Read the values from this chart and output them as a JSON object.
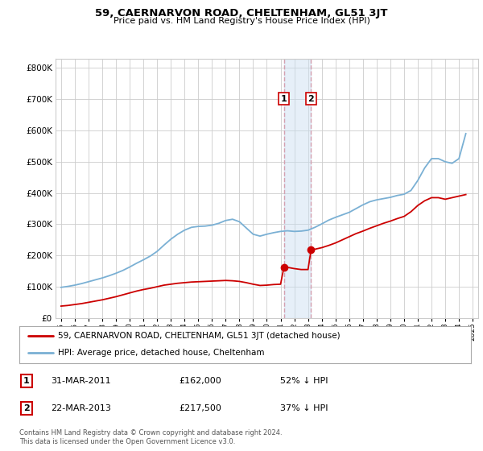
{
  "title": "59, CAERNARVON ROAD, CHELTENHAM, GL51 3JT",
  "subtitle": "Price paid vs. HM Land Registry's House Price Index (HPI)",
  "legend_line1": "59, CAERNARVON ROAD, CHELTENHAM, GL51 3JT (detached house)",
  "legend_line2": "HPI: Average price, detached house, Cheltenham",
  "footnote": "Contains HM Land Registry data © Crown copyright and database right 2024.\nThis data is licensed under the Open Government Licence v3.0.",
  "sale1_label": "1",
  "sale1_date": "31-MAR-2011",
  "sale1_price": "£162,000",
  "sale1_pct": "52% ↓ HPI",
  "sale1_x": 2011.24,
  "sale1_y": 162000,
  "sale2_label": "2",
  "sale2_date": "22-MAR-2013",
  "sale2_price": "£217,500",
  "sale2_pct": "37% ↓ HPI",
  "sale2_x": 2013.22,
  "sale2_y": 217500,
  "red_color": "#cc0000",
  "blue_color": "#7ab0d4",
  "dot_color": "#cc0000",
  "vline_color": "#d4a0b0",
  "background_color": "#ffffff",
  "grid_color": "#cccccc",
  "ylim": [
    0,
    830000
  ],
  "yticks": [
    0,
    100000,
    200000,
    300000,
    400000,
    500000,
    600000,
    700000,
    800000
  ],
  "xlim_min": 1994.6,
  "xlim_max": 2025.4,
  "hpi_x": [
    1995.0,
    1995.5,
    1996.0,
    1996.5,
    1997.0,
    1997.5,
    1998.0,
    1998.5,
    1999.0,
    1999.5,
    2000.0,
    2000.5,
    2001.0,
    2001.5,
    2002.0,
    2002.5,
    2003.0,
    2003.5,
    2004.0,
    2004.5,
    2005.0,
    2005.5,
    2006.0,
    2006.5,
    2007.0,
    2007.5,
    2008.0,
    2008.5,
    2009.0,
    2009.5,
    2010.0,
    2010.5,
    2011.0,
    2011.5,
    2012.0,
    2012.5,
    2013.0,
    2013.5,
    2014.0,
    2014.5,
    2015.0,
    2015.5,
    2016.0,
    2016.5,
    2017.0,
    2017.5,
    2018.0,
    2018.5,
    2019.0,
    2019.5,
    2020.0,
    2020.5,
    2021.0,
    2021.5,
    2022.0,
    2022.5,
    2023.0,
    2023.5,
    2024.0,
    2024.5
  ],
  "hpi_y": [
    98000,
    101000,
    105000,
    110000,
    116000,
    122000,
    128000,
    135000,
    143000,
    152000,
    163000,
    175000,
    186000,
    198000,
    213000,
    233000,
    252000,
    268000,
    281000,
    290000,
    293000,
    294000,
    297000,
    303000,
    312000,
    316000,
    308000,
    288000,
    268000,
    262000,
    268000,
    273000,
    277000,
    279000,
    277000,
    278000,
    281000,
    290000,
    301000,
    313000,
    322000,
    330000,
    338000,
    350000,
    362000,
    372000,
    378000,
    382000,
    386000,
    392000,
    396000,
    408000,
    440000,
    480000,
    510000,
    510000,
    500000,
    495000,
    510000,
    590000
  ],
  "red_x": [
    1995.0,
    1995.5,
    1996.0,
    1996.5,
    1997.0,
    1997.5,
    1998.0,
    1998.5,
    1999.0,
    1999.5,
    2000.0,
    2000.5,
    2001.0,
    2001.5,
    2002.0,
    2002.5,
    2003.0,
    2003.5,
    2004.0,
    2004.5,
    2005.0,
    2005.5,
    2006.0,
    2006.5,
    2007.0,
    2007.5,
    2008.0,
    2008.5,
    2009.0,
    2009.5,
    2010.0,
    2010.5,
    2011.0,
    2011.24,
    2011.5,
    2012.0,
    2012.5,
    2013.0,
    2013.22,
    2013.5,
    2014.0,
    2014.5,
    2015.0,
    2015.5,
    2016.0,
    2016.5,
    2017.0,
    2017.5,
    2018.0,
    2018.5,
    2019.0,
    2019.5,
    2020.0,
    2020.5,
    2021.0,
    2021.5,
    2022.0,
    2022.5,
    2023.0,
    2023.5,
    2024.0,
    2024.5
  ],
  "red_y": [
    38000,
    40000,
    43000,
    46000,
    50000,
    54000,
    58000,
    63000,
    68000,
    74000,
    80000,
    86000,
    91000,
    95000,
    100000,
    105000,
    108000,
    111000,
    113000,
    115000,
    116000,
    117000,
    118000,
    119000,
    120000,
    119000,
    117000,
    113000,
    108000,
    104000,
    105000,
    107000,
    108000,
    162000,
    162000,
    158000,
    155000,
    155000,
    217500,
    220000,
    225000,
    232000,
    240000,
    250000,
    260000,
    270000,
    278000,
    287000,
    295000,
    303000,
    310000,
    318000,
    325000,
    340000,
    360000,
    375000,
    385000,
    385000,
    380000,
    385000,
    390000,
    395000
  ]
}
